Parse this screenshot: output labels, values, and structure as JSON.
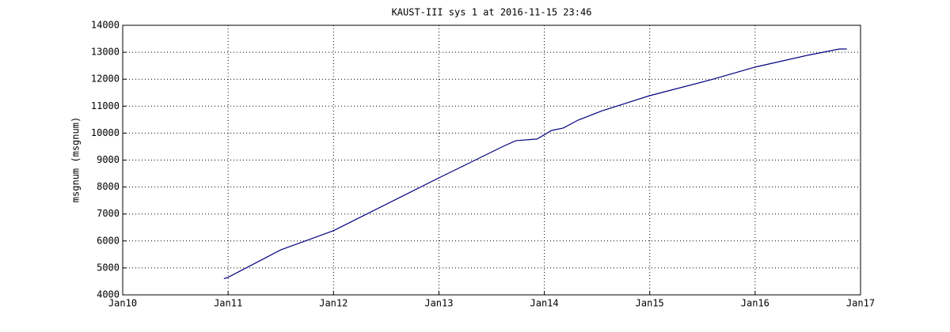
{
  "chart_data": {
    "type": "line",
    "title": "KAUST-III sys 1 at 2016-11-15 23:46",
    "y_label": "msgnum (msgnum)",
    "x": [
      2010.96,
      2011.0,
      2011.5,
      2012.0,
      2013.0,
      2013.23,
      2013.61,
      2013.73,
      2013.93,
      2014.07,
      2014.18,
      2014.32,
      2014.55,
      2015.0,
      2015.6,
      2016.0,
      2016.5,
      2016.8,
      2016.87
    ],
    "series": [
      {
        "name": "msgnum",
        "color": "#00007f",
        "values": [
          4600,
          4650,
          5670,
          6380,
          8340,
          8780,
          9510,
          9720,
          9780,
          10100,
          10190,
          10480,
          10830,
          11390,
          12000,
          12450,
          12890,
          13120,
          13120
        ]
      }
    ],
    "xlim": [
      2010,
      2017
    ],
    "xticks": [
      {
        "value": 2010,
        "label": "Jan10"
      },
      {
        "value": 2011,
        "label": "Jan11"
      },
      {
        "value": 2012,
        "label": "Jan12"
      },
      {
        "value": 2013,
        "label": "Jan13"
      },
      {
        "value": 2014,
        "label": "Jan14"
      },
      {
        "value": 2015,
        "label": "Jan15"
      },
      {
        "value": 2016,
        "label": "Jan16"
      },
      {
        "value": 2017,
        "label": "Jan17"
      }
    ],
    "ylim": [
      4000,
      14000
    ],
    "yticks": [
      4000,
      5000,
      6000,
      7000,
      8000,
      9000,
      10000,
      11000,
      12000,
      13000,
      14000
    ],
    "grid": true
  }
}
